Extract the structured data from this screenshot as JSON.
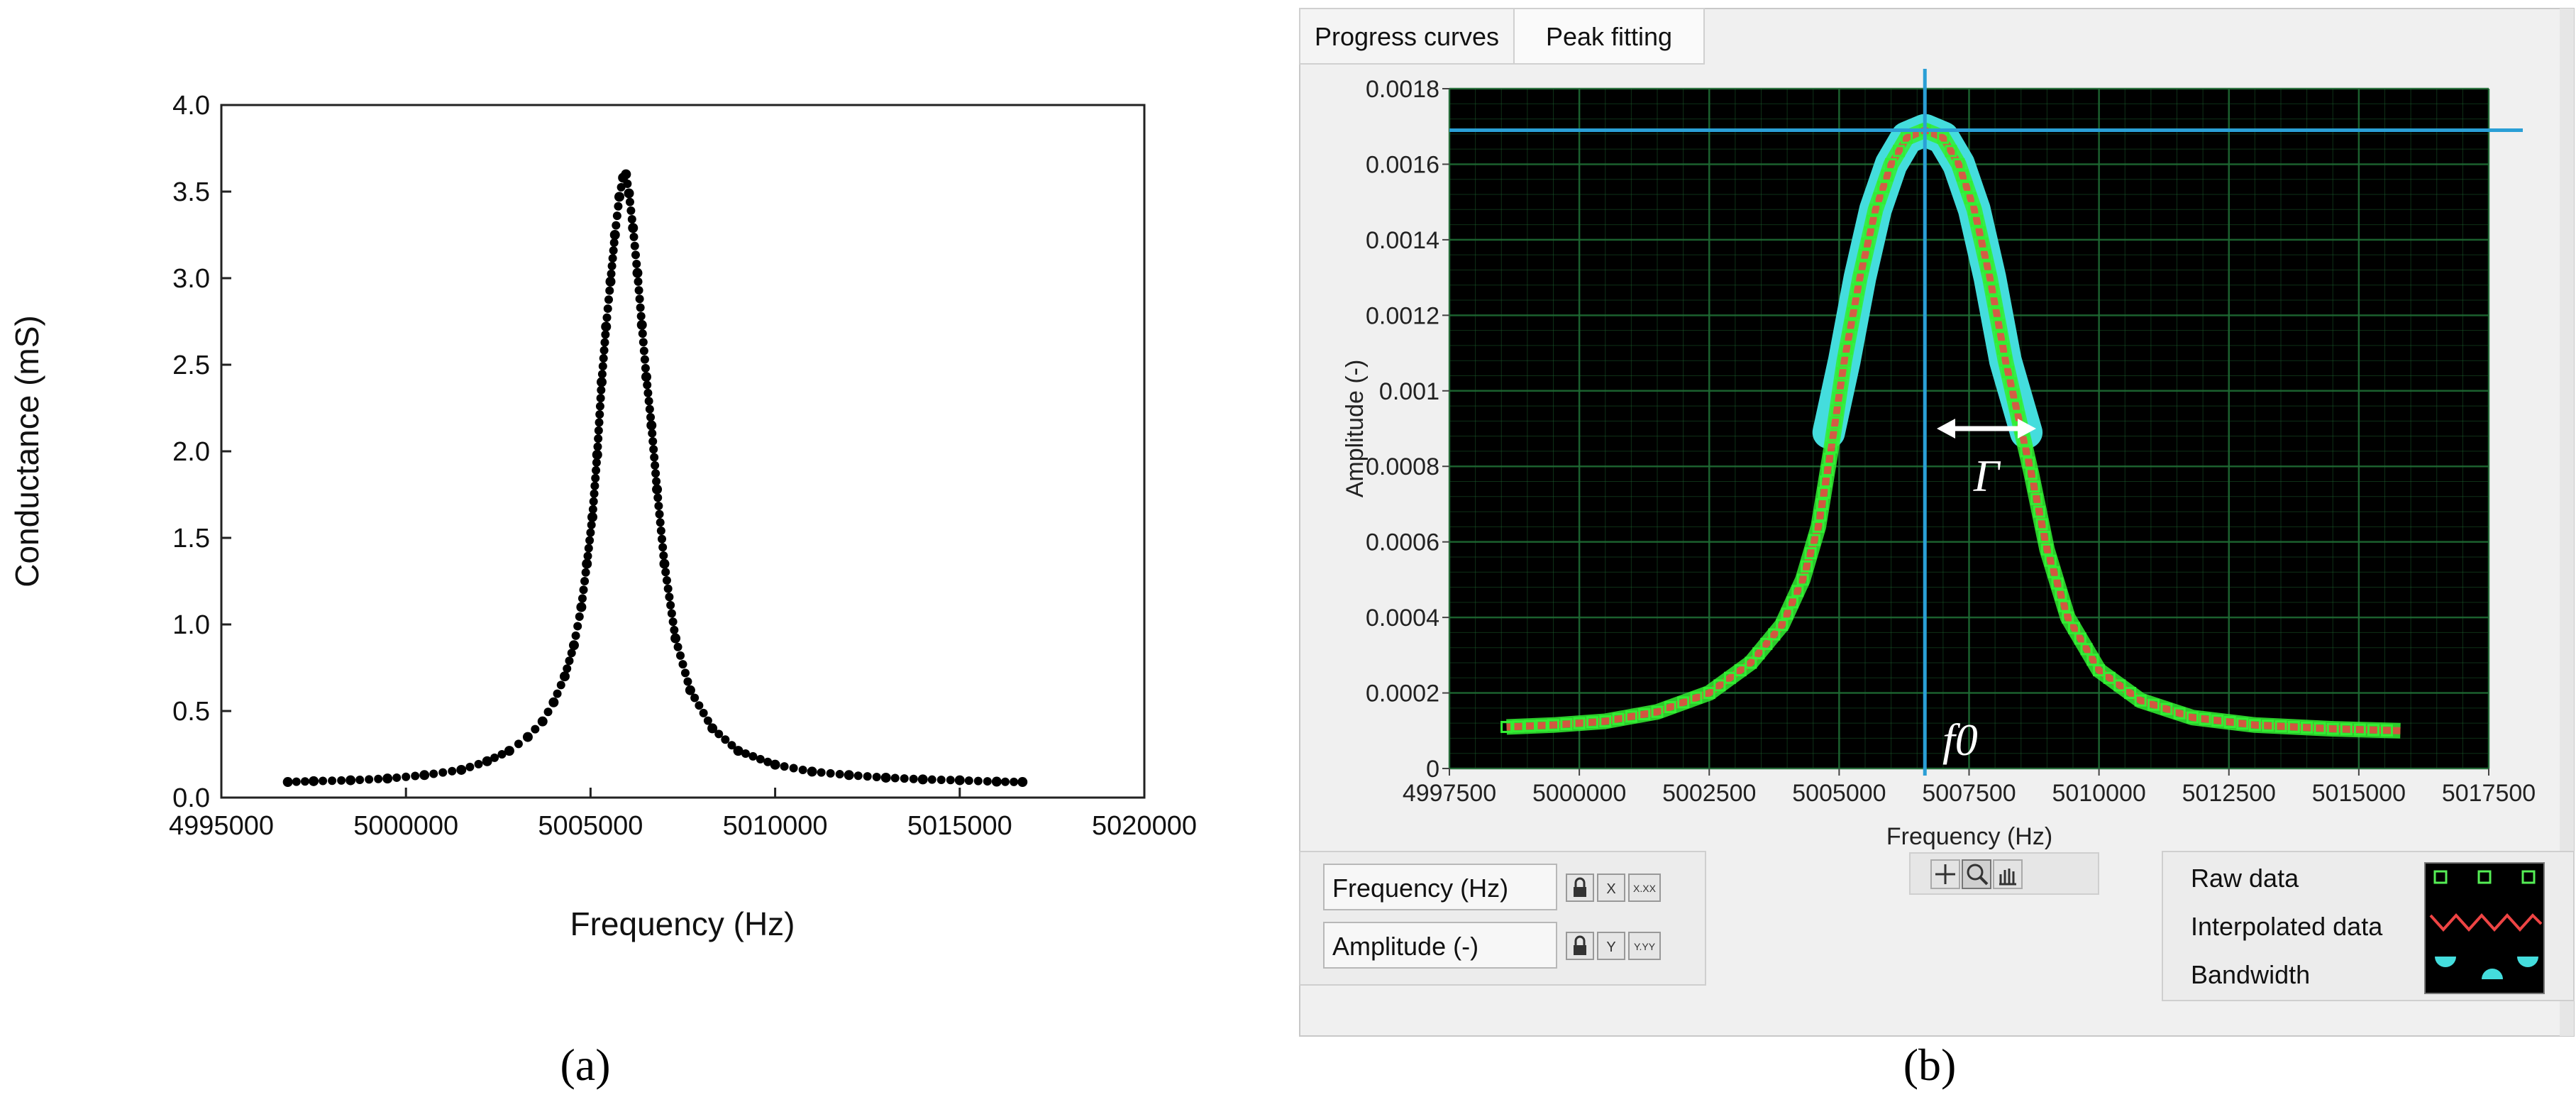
{
  "captions": {
    "left": "(a)",
    "right": "(b)"
  },
  "tabs": [
    {
      "label": "Progress curves"
    },
    {
      "label": "Peak fitting"
    }
  ],
  "annotations": {
    "gamma": "Γ",
    "f0": "f0"
  },
  "scale_controls": {
    "x_name": "Frequency (Hz)",
    "y_name": "Amplitude (-)",
    "x_format": "X.XX",
    "y_format": "Y.YY"
  },
  "legend": {
    "items": [
      {
        "label": "Raw data"
      },
      {
        "label": "Interpolated data"
      },
      {
        "label": "Bandwidth"
      }
    ]
  },
  "colors": {
    "plot_bg": "#000000",
    "grid": "#1f6b34",
    "marker_a": "#000000",
    "cursor": "#2a9fd6",
    "raw": "#33ee33",
    "interp": "#ee4444",
    "band": "#44dddd"
  },
  "icons": {
    "tools": [
      "crosshair-icon",
      "zoom-icon",
      "pan-hand-icon"
    ],
    "lock": "lock-icon"
  },
  "chart_data": [
    {
      "type": "scatter",
      "title": "",
      "xlabel": "Frequency (Hz)",
      "ylabel": "Conductance (mS)",
      "xlim": [
        4995000,
        5020000
      ],
      "ylim": [
        0,
        4.0
      ],
      "xticks": [
        "4995000",
        "5000000",
        "5005000",
        "5010000",
        "5015000",
        "5020000"
      ],
      "yticks": [
        "0.0",
        "0.5",
        "1.0",
        "1.5",
        "2.0",
        "2.5",
        "3.0",
        "3.5",
        "4.0"
      ],
      "grid": false,
      "series": [
        {
          "x": [
            4996800,
            4997500,
            4998500,
            4999500,
            5000500,
            5001500,
            5002200,
            5002800,
            5003300,
            5003700,
            5004000,
            5004300,
            5004550,
            5004750,
            5004900,
            5005050,
            5005180,
            5005300,
            5005420,
            5005540,
            5005660,
            5005780,
            5005880,
            5005960,
            5006040,
            5006150,
            5006270,
            5006390,
            5006510,
            5006650,
            5006800,
            5007000,
            5007300,
            5007700,
            5008300,
            5009000,
            5010000,
            5011000,
            5012000,
            5013000,
            5014000,
            5015000,
            5016000,
            5016700
          ],
          "y": [
            0.09,
            0.095,
            0.1,
            0.11,
            0.13,
            0.16,
            0.21,
            0.27,
            0.35,
            0.44,
            0.55,
            0.7,
            0.88,
            1.1,
            1.35,
            1.62,
            1.98,
            2.4,
            2.72,
            2.98,
            3.25,
            3.47,
            3.58,
            3.6,
            3.49,
            3.29,
            3.03,
            2.73,
            2.43,
            2.15,
            1.78,
            1.35,
            0.92,
            0.62,
            0.4,
            0.27,
            0.19,
            0.15,
            0.13,
            0.115,
            0.105,
            0.1,
            0.092,
            0.09
          ]
        }
      ]
    },
    {
      "type": "line",
      "title": "",
      "xlabel": "Frequency (Hz)",
      "ylabel": "Amplitude (-)",
      "xlim": [
        4997500,
        5017500
      ],
      "ylim": [
        0,
        0.0018
      ],
      "xticks": [
        "4997500",
        "5000000",
        "5002500",
        "5005000",
        "5007500",
        "5010000",
        "5012500",
        "5015000",
        "5017500"
      ],
      "yticks": [
        "0",
        "0.0002",
        "0.0004",
        "0.0006",
        "0.0008",
        "0.001",
        "0.0012",
        "0.0014",
        "0.0016",
        "0.0018"
      ],
      "grid": true,
      "cursor_x": 5006650,
      "cursor_y": 0.00169,
      "bandwidth_x": [
        5004800,
        5008600
      ],
      "series": [
        {
          "name": "Raw data",
          "x": [
            4998600,
            4999500,
            5000500,
            5001500,
            5002500,
            5003300,
            5003900,
            5004300,
            5004600,
            5004850,
            5005100,
            5005400,
            5005700,
            5006000,
            5006300,
            5006650,
            5007000,
            5007300,
            5007600,
            5007900,
            5008200,
            5008450,
            5008700,
            5009000,
            5009400,
            5010000,
            5010800,
            5011800,
            5013000,
            5014500,
            5015800
          ],
          "y": [
            0.00011,
            0.000115,
            0.000125,
            0.00015,
            0.0002,
            0.00028,
            0.00038,
            0.0005,
            0.00064,
            0.00085,
            0.00108,
            0.0013,
            0.00148,
            0.0016,
            0.00167,
            0.00169,
            0.00167,
            0.0016,
            0.00148,
            0.0013,
            0.00108,
            0.00093,
            0.00078,
            0.00058,
            0.0004,
            0.00026,
            0.00018,
            0.000135,
            0.000115,
            0.000105,
            0.0001
          ]
        },
        {
          "name": "Bandwidth",
          "x": [
            5004800,
            5005100,
            5005400,
            5005700,
            5006000,
            5006300,
            5006650,
            5007000,
            5007300,
            5007600,
            5007900,
            5008200,
            5008600
          ],
          "y": [
            0.00089,
            0.00108,
            0.0013,
            0.00148,
            0.0016,
            0.00167,
            0.00169,
            0.00167,
            0.0016,
            0.00148,
            0.0013,
            0.00108,
            0.00089
          ]
        }
      ]
    }
  ]
}
